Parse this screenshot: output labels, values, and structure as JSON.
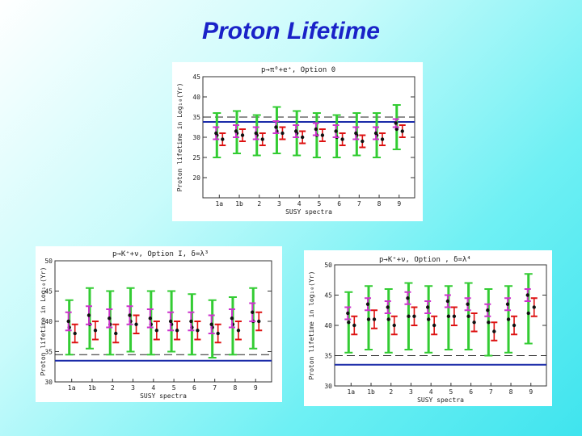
{
  "slide": {
    "title": "Proton Lifetime"
  },
  "colors": {
    "green": "#33cc33",
    "red": "#dd1111",
    "magenta": "#cc33cc",
    "blue": "#1a2aa8",
    "title": "#1a22c8"
  },
  "chart_data": [
    {
      "type": "scatter",
      "title": "p→π⁰+e⁺, Option 0",
      "xlabel": "SUSY spectra",
      "ylabel": "Proton lifetime in Log₁₀(Yr)",
      "categories": [
        "1a",
        "1b",
        "2",
        "3",
        "4",
        "5",
        "6",
        "7",
        "8",
        "9"
      ],
      "ylim": [
        15,
        45
      ],
      "yticks": [
        20,
        25,
        30,
        35,
        40,
        45
      ],
      "hlines": [
        {
          "value": 35.0,
          "style": "dashed"
        },
        {
          "value": 33.8,
          "style": "solid"
        }
      ],
      "series": [
        {
          "name": "green",
          "values": [
            30.5,
            31.0,
            30.5,
            31.5,
            31.0,
            30.5,
            30.0,
            30.5,
            30.5,
            32.0
          ],
          "lo": [
            25.0,
            26.0,
            25.5,
            26.0,
            25.5,
            25.0,
            25.0,
            25.5,
            25.0,
            27.0
          ],
          "hi": [
            36.0,
            36.5,
            35.5,
            37.5,
            36.5,
            36.0,
            35.5,
            36.0,
            36.0,
            38.0
          ]
        },
        {
          "name": "magenta",
          "values": [
            31.0,
            31.5,
            31.0,
            32.5,
            31.5,
            32.0,
            31.5,
            31.0,
            31.0,
            33.5
          ],
          "lo": [
            29.5,
            30.0,
            29.5,
            31.0,
            30.0,
            30.5,
            30.0,
            29.5,
            29.5,
            32.5
          ],
          "hi": [
            32.5,
            33.0,
            32.5,
            34.0,
            33.0,
            33.5,
            33.0,
            32.5,
            32.5,
            34.5
          ]
        },
        {
          "name": "red",
          "values": [
            29.5,
            30.5,
            29.5,
            31.0,
            30.0,
            30.5,
            29.5,
            29.0,
            29.5,
            31.5
          ],
          "lo": [
            28.0,
            29.0,
            28.0,
            29.5,
            28.5,
            29.0,
            28.0,
            27.5,
            28.0,
            30.0
          ],
          "hi": [
            31.0,
            32.0,
            31.0,
            32.5,
            31.5,
            32.0,
            31.0,
            30.5,
            31.0,
            33.0
          ]
        }
      ]
    },
    {
      "type": "scatter",
      "title": "p→K⁺+ν, Option I, δ=λ³",
      "xlabel": "SUSY spectra",
      "ylabel": "Proton lifetime in Log₁₀(Yr)",
      "categories": [
        "1a",
        "1b",
        "2",
        "3",
        "4",
        "5",
        "6",
        "7",
        "8",
        "9"
      ],
      "ylim": [
        30,
        50
      ],
      "yticks": [
        30,
        35,
        40,
        45,
        50
      ],
      "hlines": [
        {
          "value": 34.5,
          "style": "dashed"
        },
        {
          "value": 33.5,
          "style": "solid"
        }
      ],
      "series": [
        {
          "name": "green",
          "values": [
            39.0,
            39.5,
            39.5,
            40.0,
            39.5,
            39.5,
            39.0,
            39.0,
            39.5,
            40.0
          ],
          "lo": [
            34.5,
            35.5,
            34.5,
            35.0,
            34.5,
            35.0,
            34.5,
            34.0,
            34.5,
            35.5
          ],
          "hi": [
            43.5,
            45.5,
            45.0,
            45.5,
            45.0,
            45.0,
            44.5,
            43.5,
            44.0,
            45.5
          ]
        },
        {
          "name": "magenta",
          "values": [
            40.0,
            41.0,
            40.5,
            41.0,
            40.5,
            40.0,
            40.0,
            39.5,
            40.5,
            41.5
          ],
          "lo": [
            38.5,
            39.5,
            39.0,
            39.5,
            39.0,
            38.5,
            38.5,
            38.0,
            39.0,
            40.0
          ],
          "hi": [
            41.5,
            42.5,
            42.0,
            42.5,
            42.0,
            41.5,
            41.5,
            41.0,
            42.0,
            43.0
          ]
        },
        {
          "name": "red",
          "values": [
            38.0,
            38.5,
            38.0,
            39.5,
            38.5,
            38.5,
            38.5,
            38.0,
            38.5,
            40.0
          ],
          "lo": [
            36.5,
            37.0,
            36.5,
            38.0,
            37.0,
            37.0,
            37.0,
            36.5,
            37.0,
            38.5
          ],
          "hi": [
            39.5,
            40.0,
            39.5,
            41.0,
            40.0,
            40.0,
            40.0,
            39.5,
            40.0,
            41.5
          ]
        }
      ]
    },
    {
      "type": "scatter",
      "title": "p→K⁺+ν, Option , δ=λ⁴",
      "xlabel": "SUSY spectra",
      "ylabel": "Proton lifetime in log₁₀(Yr)",
      "categories": [
        "1a",
        "1b",
        "2",
        "3",
        "4",
        "5",
        "6",
        "7",
        "8",
        "9"
      ],
      "ylim": [
        30,
        50
      ],
      "yticks": [
        30,
        35,
        40,
        45,
        50
      ],
      "hlines": [
        {
          "value": 35.0,
          "style": "dashed"
        },
        {
          "value": 33.5,
          "style": "solid"
        }
      ],
      "series": [
        {
          "name": "green",
          "values": [
            40.5,
            41.0,
            41.0,
            41.5,
            41.0,
            41.5,
            41.5,
            40.5,
            41.0,
            42.0
          ],
          "lo": [
            35.5,
            36.0,
            35.5,
            36.0,
            35.5,
            36.0,
            36.0,
            35.0,
            35.5,
            37.0
          ],
          "hi": [
            45.5,
            46.5,
            46.0,
            47.0,
            46.5,
            46.5,
            47.0,
            46.0,
            46.5,
            48.5
          ]
        },
        {
          "name": "magenta",
          "values": [
            42.0,
            43.5,
            43.0,
            44.5,
            43.0,
            44.0,
            43.5,
            42.5,
            43.5,
            45.0
          ],
          "lo": [
            41.0,
            42.5,
            42.0,
            43.5,
            42.0,
            43.0,
            42.5,
            41.5,
            42.5,
            44.0
          ],
          "hi": [
            43.0,
            44.5,
            44.0,
            45.5,
            44.0,
            45.0,
            44.5,
            43.5,
            44.5,
            46.0
          ]
        },
        {
          "name": "red",
          "values": [
            40.0,
            41.0,
            40.0,
            41.5,
            40.0,
            41.5,
            40.5,
            39.0,
            40.0,
            43.0
          ],
          "lo": [
            38.5,
            39.5,
            38.5,
            40.0,
            38.5,
            40.0,
            39.0,
            37.5,
            38.5,
            41.5
          ],
          "hi": [
            41.5,
            42.5,
            41.5,
            43.0,
            41.5,
            43.0,
            42.0,
            40.5,
            41.5,
            44.5
          ]
        }
      ]
    }
  ]
}
